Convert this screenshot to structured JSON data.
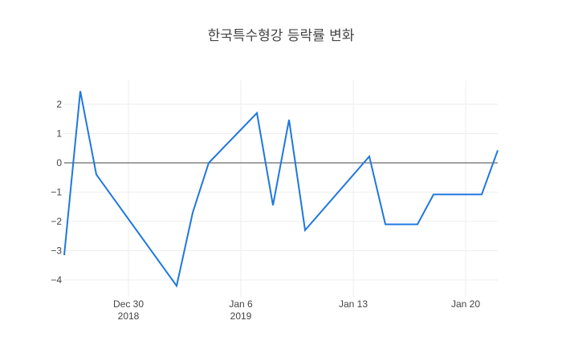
{
  "chart_data": {
    "type": "line",
    "title": "한국특수형강 등락률 변화",
    "xlabel": "",
    "ylabel": "",
    "x": [
      "2018-12-26",
      "2018-12-27",
      "2018-12-28",
      "2019-01-02",
      "2019-01-03",
      "2019-01-04",
      "2019-01-07",
      "2019-01-08",
      "2019-01-09",
      "2019-01-10",
      "2019-01-14",
      "2019-01-15",
      "2019-01-17",
      "2019-01-18",
      "2019-01-21",
      "2019-01-22"
    ],
    "series": [
      {
        "name": "등락률",
        "color": "#1f77e0",
        "values": [
          -3.15,
          2.45,
          -0.4,
          -4.2,
          -1.7,
          0.0,
          1.7,
          -1.45,
          1.47,
          -2.3,
          0.22,
          -2.1,
          -2.1,
          -1.08,
          -1.08,
          0.43
        ]
      }
    ],
    "ylim": [
      -4.4,
      2.8
    ],
    "yticks": [
      2,
      1,
      0,
      -1,
      -2,
      -3,
      -4
    ],
    "ytick_labels": [
      "2",
      "1",
      "0",
      "−1",
      "−2",
      "−3",
      "−4"
    ],
    "xticks": [
      {
        "date": "2018-12-30",
        "line1": "Dec 30",
        "line2": "2018"
      },
      {
        "date": "2019-01-06",
        "line1": "Jan 6",
        "line2": "2019"
      },
      {
        "date": "2019-01-13",
        "line1": "Jan 13",
        "line2": ""
      },
      {
        "date": "2019-01-20",
        "line1": "Jan 20",
        "line2": ""
      }
    ],
    "grid": true,
    "legend": false
  }
}
